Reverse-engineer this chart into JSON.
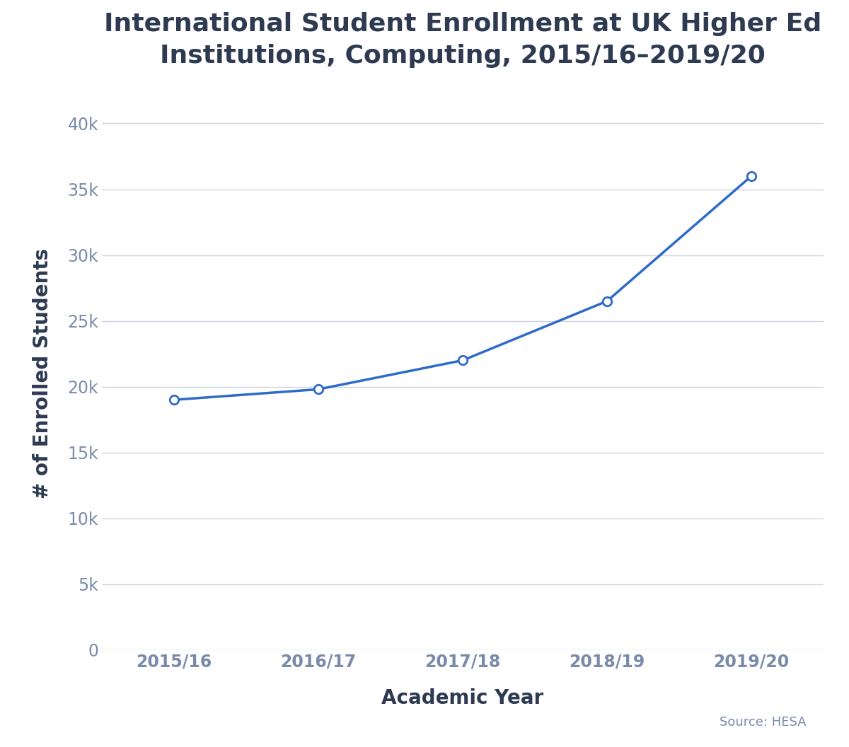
{
  "title": "International Student Enrollment at UK Higher Ed\nInstitutions, Computing, 2015/16–2019/20",
  "xlabel": "Academic Year",
  "ylabel": "# of Enrolled Students",
  "x_labels": [
    "2015/16",
    "2016/17",
    "2017/18",
    "2018/19",
    "2019/20"
  ],
  "y_values": [
    19000,
    19800,
    22000,
    26500,
    36000
  ],
  "line_color": "#2e6bc9",
  "marker_color": "#2e6bc9",
  "marker_face_color": "white",
  "title_color": "#2d3a52",
  "label_color": "#2d3a52",
  "tick_color": "#7a8baa",
  "grid_color": "#cdd3e0",
  "source_text": "Source: HESA",
  "ylim": [
    0,
    42000
  ],
  "yticks": [
    0,
    5000,
    10000,
    15000,
    20000,
    25000,
    30000,
    35000,
    40000
  ],
  "xlim": [
    -0.5,
    4.5
  ],
  "title_fontsize": 26,
  "label_fontsize": 20,
  "tick_fontsize": 17,
  "source_fontsize": 13,
  "line_width": 2.5,
  "marker_size": 9
}
